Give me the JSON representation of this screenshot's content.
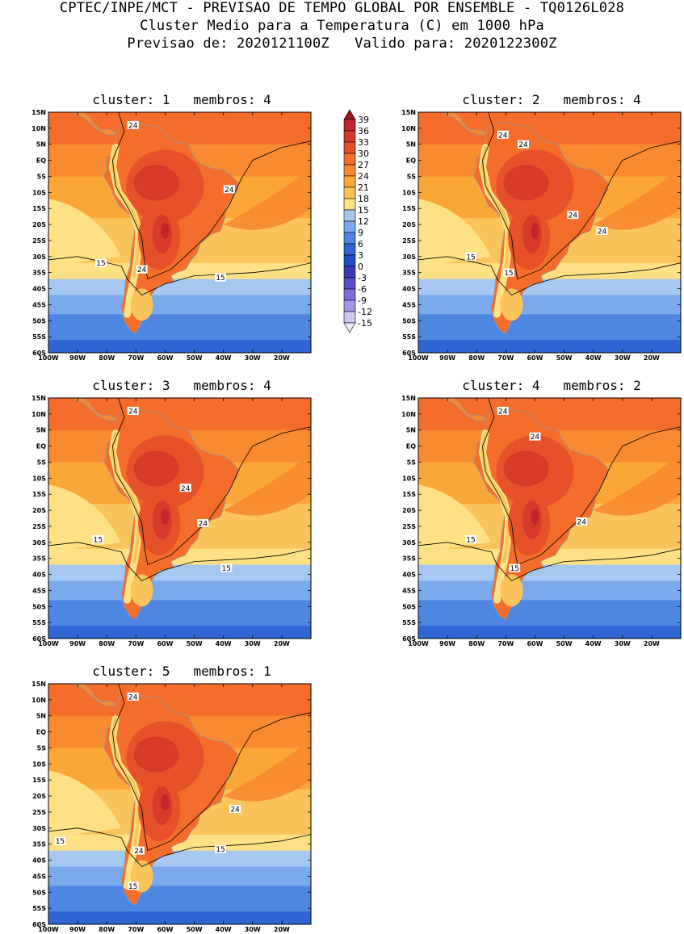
{
  "header": {
    "line1": "CPTEC/INPE/MCT - PREVISAO DE TEMPO GLOBAL POR ENSEMBLE - TQ0126L028",
    "line2": "Cluster Medio para a Temperatura (C) em 1000 hPa",
    "line3": "Previsao de: 2020121100Z   Valido para: 2020122300Z"
  },
  "panels": [
    {
      "title": "cluster: 1   membros: 4",
      "contour_labels": [
        "24",
        "24",
        "24",
        "15",
        "15"
      ]
    },
    {
      "title": "cluster: 2   membros: 4",
      "contour_labels": [
        "24",
        "24",
        "24",
        "24",
        "15",
        "15"
      ]
    },
    {
      "title": "cluster: 3   membros: 4",
      "contour_labels": [
        "24",
        "24",
        "24",
        "15",
        "15"
      ]
    },
    {
      "title": "cluster: 4   membros: 2",
      "contour_labels": [
        "24",
        "24",
        "24",
        "15",
        "15"
      ]
    },
    {
      "title": "cluster: 5   membros: 1",
      "contour_labels": [
        "24",
        "24",
        "24",
        "15",
        "15",
        "15"
      ]
    }
  ],
  "axes": {
    "lat_labels": [
      "15N",
      "10N",
      "5N",
      "EQ",
      "5S",
      "10S",
      "15S",
      "20S",
      "25S",
      "30S",
      "35S",
      "40S",
      "45S",
      "50S",
      "55S",
      "60S"
    ],
    "lon_labels": [
      "100W",
      "90W",
      "80W",
      "70W",
      "60W",
      "50W",
      "40W",
      "30W",
      "20W"
    ]
  },
  "legend": {
    "labels": [
      "39",
      "36",
      "33",
      "30",
      "27",
      "24",
      "21",
      "18",
      "15",
      "12",
      "9",
      "6",
      "3",
      "0",
      "-3",
      "-6",
      "-9",
      "-12",
      "-15"
    ],
    "colors": [
      "#a5121d",
      "#c0262a",
      "#d63b2a",
      "#e6512a",
      "#f46d2b",
      "#f88a2f",
      "#fba738",
      "#fbc45a",
      "#fde184",
      "#a6c8f0",
      "#7aa9ec",
      "#4f86e1",
      "#2f66d4",
      "#1e4fc5",
      "#3b3bb6",
      "#5a4fc5",
      "#7d6fd6",
      "#a598e6",
      "#cfc6f3",
      "#efeafc"
    ]
  },
  "chart_data": {
    "type": "heatmap",
    "variable": "Temperatura (C) em 1000 hPa",
    "lat_range": [
      "60S",
      "15N"
    ],
    "lon_range": [
      "100W",
      "10W"
    ],
    "contour_levels": [
      15,
      24
    ],
    "color_levels": [
      -15,
      -12,
      -9,
      -6,
      -3,
      0,
      3,
      6,
      9,
      12,
      15,
      18,
      21,
      24,
      27,
      30,
      33,
      36,
      39
    ]
  }
}
